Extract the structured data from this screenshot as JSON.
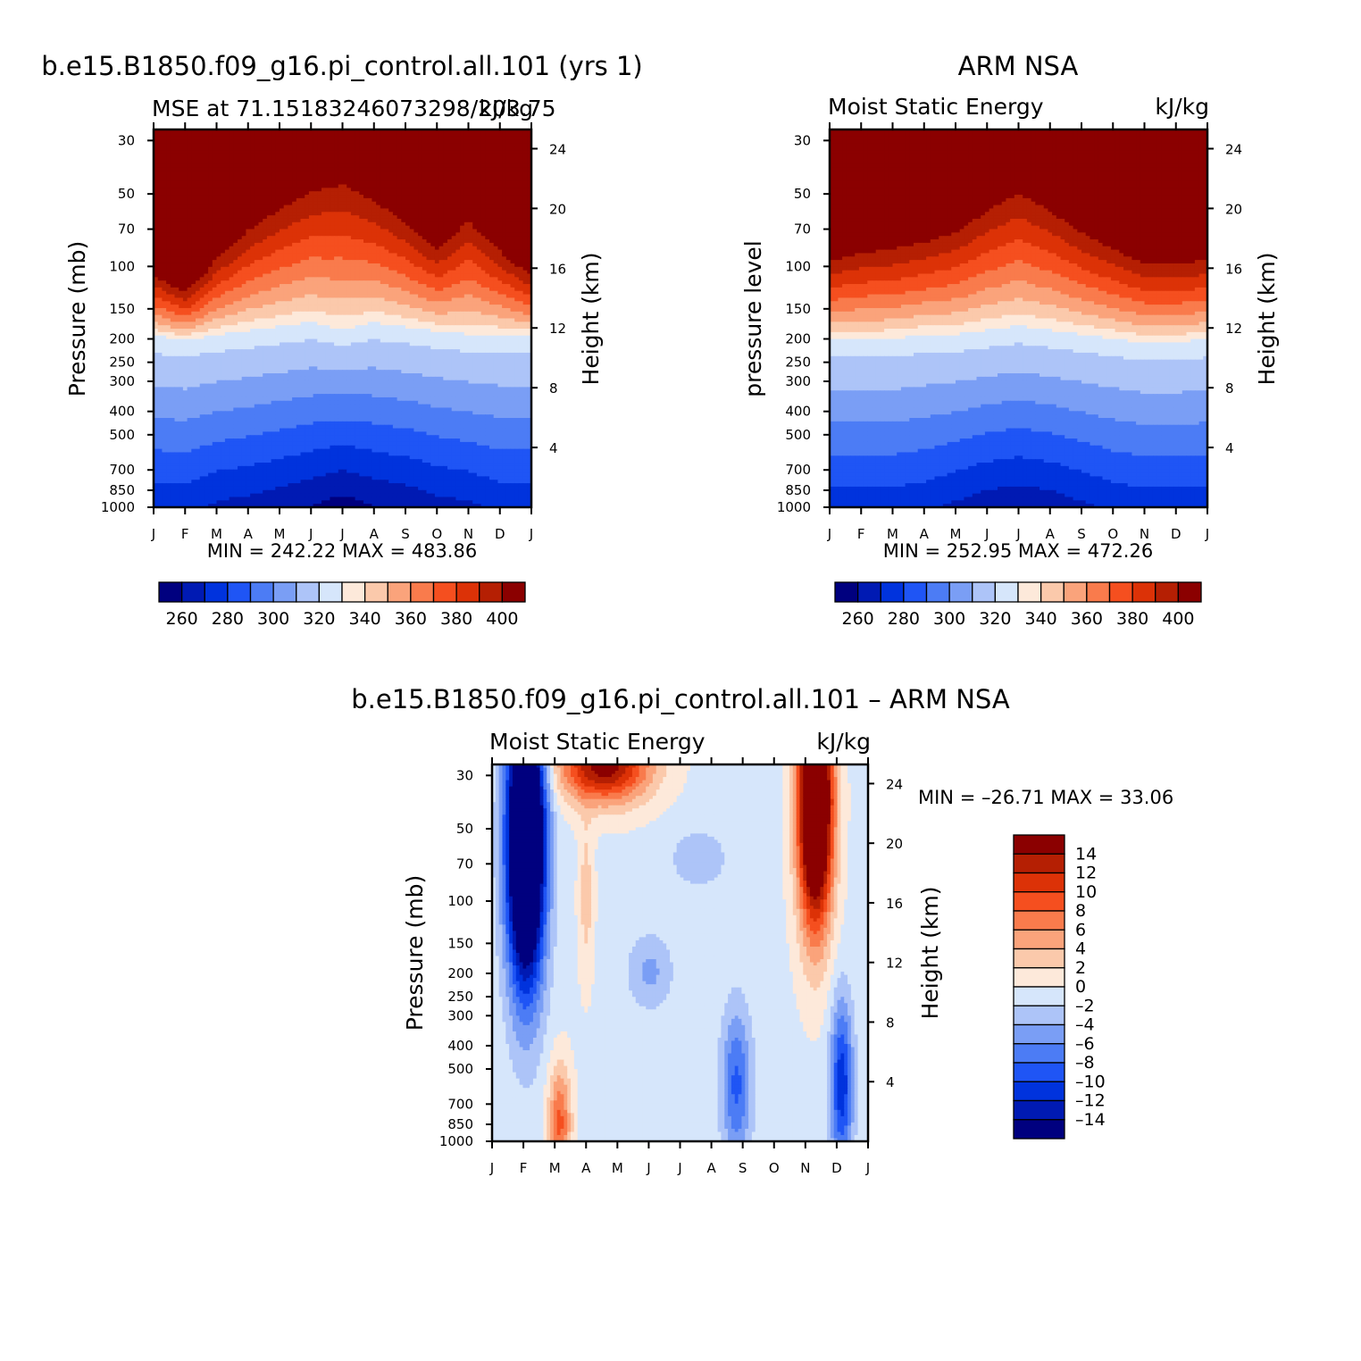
{
  "palette": {
    "colors": [
      "#00007f",
      "#001ab3",
      "#0033dd",
      "#1f55f5",
      "#4c7cf5",
      "#7a9ef5",
      "#adc4f8",
      "#d6e6fb",
      "#fde9da",
      "#fbc9ab",
      "#faa37b",
      "#f97b4c",
      "#f54f1f",
      "#dc3207",
      "#b51f03",
      "#8b0000"
    ]
  },
  "common": {
    "months": [
      "J",
      "F",
      "M",
      "A",
      "M",
      "J",
      "J",
      "A",
      "S",
      "O",
      "N",
      "D",
      "J"
    ],
    "pressure_ticks": [
      "30",
      "50",
      "70",
      "100",
      "150",
      "200",
      "250",
      "300",
      "400",
      "500",
      "700",
      "850",
      "1000"
    ],
    "height_ticks": [
      "24",
      "20",
      "16",
      "12",
      "8",
      "4"
    ]
  },
  "panel1": {
    "main_title": "b.e15.B1850.f09_g16.pi_control.all.101 (yrs 1)",
    "left_title": "MSE at 71.15183246073298/203.75",
    "right_title": "kJ/kg",
    "ylabel": "Pressure (mb)",
    "ylabel_right": "Height (km)",
    "minmax": "MIN = 242.22  MAX = 483.86",
    "colorbar_labels": [
      "260",
      "280",
      "300",
      "320",
      "340",
      "360",
      "380",
      "400"
    ]
  },
  "panel2": {
    "main_title": "ARM NSA",
    "left_title": "Moist Static Energy",
    "right_title": "kJ/kg",
    "ylabel": "pressure level",
    "ylabel_right": "Height (km)",
    "minmax": "MIN = 252.95  MAX = 472.26",
    "colorbar_labels": [
      "260",
      "280",
      "300",
      "320",
      "340",
      "360",
      "380",
      "400"
    ]
  },
  "panel3": {
    "main_title": "b.e15.B1850.f09_g16.pi_control.all.101 – ARM NSA",
    "left_title": "Moist Static Energy",
    "right_title": "kJ/kg",
    "ylabel": "Pressure (mb)",
    "ylabel_right": "Height (km)",
    "minmax": "MIN = –26.71  MAX =   33.06",
    "colorbar_labels": [
      "14",
      "12",
      "10",
      "8",
      "6",
      "4",
      "2",
      "0",
      "–2",
      "–4",
      "–6",
      "–8",
      "–10",
      "–12",
      "–14"
    ]
  },
  "chart_data": [
    {
      "type": "heatmap",
      "title": "b.e15.B1850.f09_g16.pi_control.all.101 (yrs 1)",
      "subtitle": "MSE at 71.15183246073298/203.75",
      "units": "kJ/kg",
      "x": [
        "J",
        "F",
        "M",
        "A",
        "M",
        "J",
        "J",
        "A",
        "S",
        "O",
        "N",
        "D",
        "J"
      ],
      "y_pressure_mb": [
        30,
        50,
        70,
        100,
        150,
        200,
        250,
        300,
        400,
        500,
        700,
        850,
        1000
      ],
      "ylabel": "Pressure (mb)",
      "ylabel_right": "Height (km)",
      "contour_levels": [
        250,
        260,
        270,
        280,
        290,
        300,
        310,
        320,
        330,
        340,
        350,
        360,
        370,
        380,
        390,
        400
      ],
      "min": 242.22,
      "max": 483.86
    },
    {
      "type": "heatmap",
      "title": "ARM NSA",
      "subtitle": "Moist Static Energy",
      "units": "kJ/kg",
      "x": [
        "J",
        "F",
        "M",
        "A",
        "M",
        "J",
        "J",
        "A",
        "S",
        "O",
        "N",
        "D",
        "J"
      ],
      "y_pressure_mb": [
        30,
        50,
        70,
        100,
        150,
        200,
        250,
        300,
        400,
        500,
        700,
        850,
        1000
      ],
      "ylabel": "pressure level",
      "ylabel_right": "Height (km)",
      "contour_levels": [
        250,
        260,
        270,
        280,
        290,
        300,
        310,
        320,
        330,
        340,
        350,
        360,
        370,
        380,
        390,
        400
      ],
      "min": 252.95,
      "max": 472.26
    },
    {
      "type": "heatmap",
      "title": "b.e15.B1850.f09_g16.pi_control.all.101 – ARM NSA",
      "subtitle": "Moist Static Energy",
      "units": "kJ/kg",
      "x": [
        "J",
        "F",
        "M",
        "A",
        "M",
        "J",
        "J",
        "A",
        "S",
        "O",
        "N",
        "D",
        "J"
      ],
      "y_pressure_mb": [
        30,
        50,
        70,
        100,
        150,
        200,
        250,
        300,
        400,
        500,
        700,
        850,
        1000
      ],
      "ylabel": "Pressure (mb)",
      "ylabel_right": "Height (km)",
      "contour_levels": [
        -14,
        -12,
        -10,
        -8,
        -6,
        -4,
        -2,
        0,
        2,
        4,
        6,
        8,
        10,
        12,
        14
      ],
      "min": -26.71,
      "max": 33.06
    }
  ]
}
